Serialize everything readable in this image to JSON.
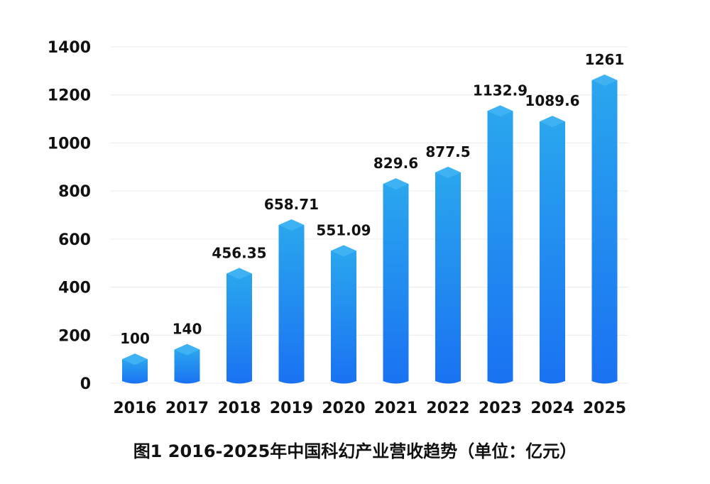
{
  "colors": {
    "bar_top": "#2aa6ee",
    "bar_bottom": "#1a72f2",
    "bar_cap": "#3fb2f4",
    "grid": "#ececec",
    "text": "#111111"
  },
  "chart_data": {
    "type": "bar",
    "title": "图1 2016-2025年中国科幻产业营收趋势（单位：亿元）",
    "xlabel": "",
    "ylabel": "",
    "categories": [
      "2016",
      "2017",
      "2018",
      "2019",
      "2020",
      "2021",
      "2022",
      "2023",
      "2024",
      "2025"
    ],
    "values": [
      100,
      140,
      456.35,
      658.71,
      551.09,
      829.6,
      877.5,
      1132.9,
      1089.6,
      1261
    ],
    "value_labels": [
      "100",
      "140",
      "456.35",
      "658.71",
      "551.09",
      "829.6",
      "877.5",
      "1132.9",
      "1089.6",
      "1261"
    ],
    "ylim": [
      0,
      1400
    ],
    "yticks": [
      0,
      200,
      400,
      600,
      800,
      1000,
      1200,
      1400
    ],
    "ytick_labels": [
      "0",
      "200",
      "400",
      "600",
      "800",
      "1000",
      "1200",
      "1400"
    ],
    "grid": true,
    "legend": "none"
  }
}
